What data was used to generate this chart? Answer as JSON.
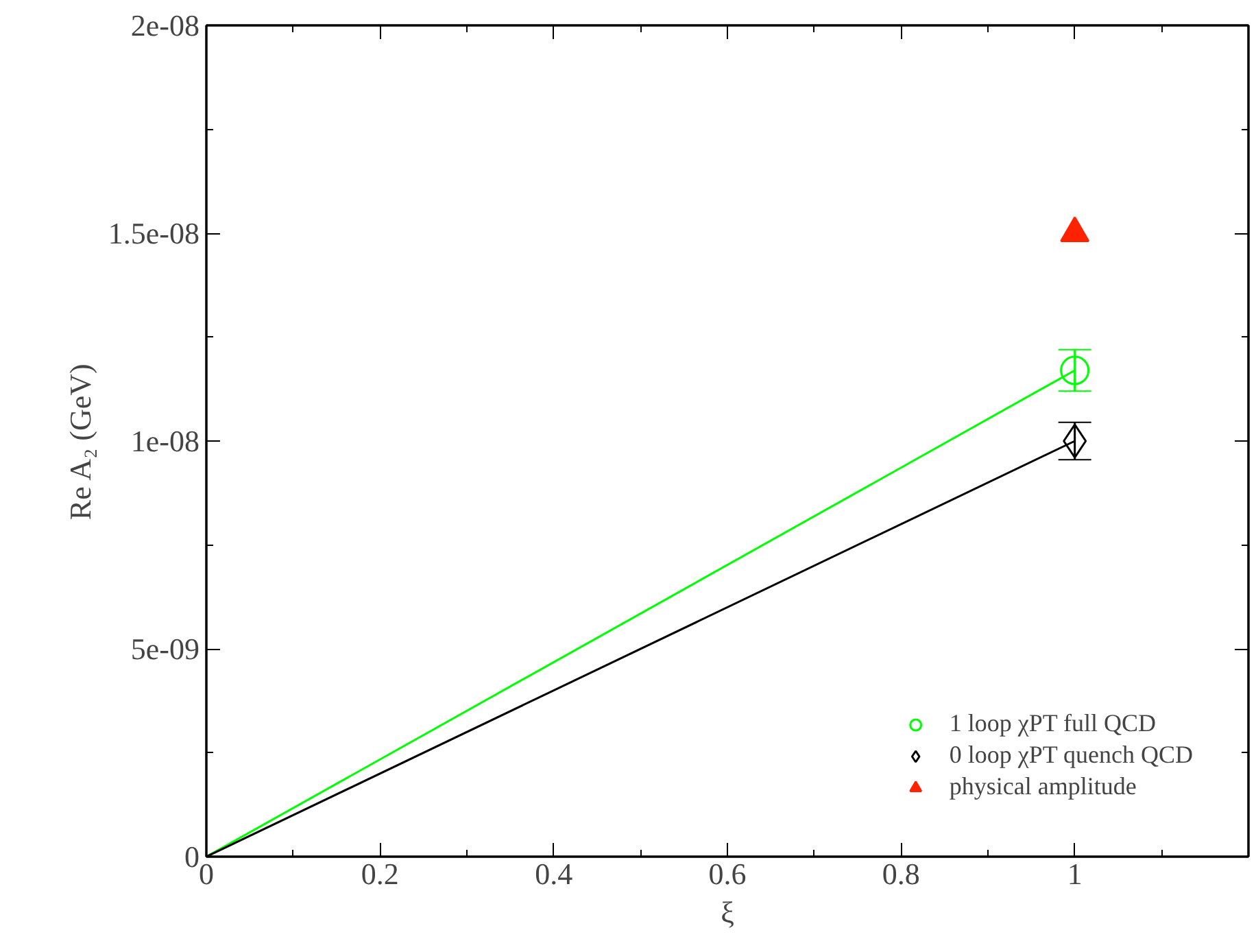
{
  "chart_data": {
    "type": "scatter",
    "xlabel": "ξ",
    "ylabel": "Re A₂ (GeV)",
    "xlim": [
      0,
      1.2
    ],
    "ylim": [
      0,
      2e-08
    ],
    "xticks": [
      0,
      0.2,
      0.4,
      0.6,
      0.8,
      1
    ],
    "yticks": [
      {
        "value": 0,
        "label": "0"
      },
      {
        "value": 5e-09,
        "label": "5e-09"
      },
      {
        "value": 1e-08,
        "label": "1e-08"
      },
      {
        "value": 1.5e-08,
        "label": "1.5e-08"
      },
      {
        "value": 2e-08,
        "label": "2e-08"
      }
    ],
    "grid": false,
    "legend": "bottom right",
    "x": [
      0,
      1
    ],
    "series": [
      {
        "type": "line",
        "values": [
          0,
          1.17e-08
        ],
        "color": "#00ff00",
        "line_style": "solid",
        "marker": "none"
      },
      {
        "type": "line",
        "values": [
          0,
          1e-08
        ],
        "color": "#000000",
        "line_style": "solid",
        "marker": "none"
      },
      {
        "name": "1 loop χPT full QCD",
        "values": [
          null,
          1.17e-08
        ],
        "errors": [
          null,
          5e-10
        ],
        "color": "#00ff00",
        "marker": "circle"
      },
      {
        "name": "0 loop χPT quench QCD",
        "values": [
          null,
          1e-08
        ],
        "errors": [
          null,
          4.5e-10
        ],
        "color": "#000000",
        "marker": "diamond"
      },
      {
        "name": "physical amplitude",
        "values": [
          null,
          1.5e-08
        ],
        "color": "#ff2200",
        "marker": "triangle"
      }
    ]
  }
}
